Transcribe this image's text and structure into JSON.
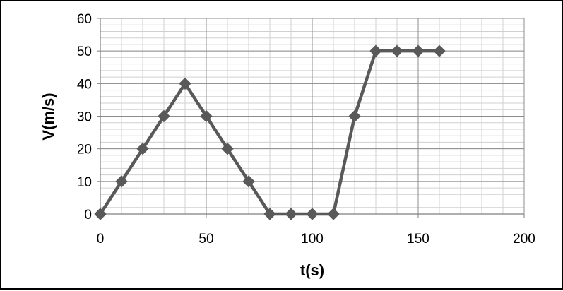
{
  "chart_data": {
    "type": "line",
    "title": "",
    "xlabel": "t(s)",
    "ylabel": "V(m/s)",
    "xlim": [
      0,
      200
    ],
    "ylim": [
      0,
      60
    ],
    "x_ticks": [
      0,
      50,
      100,
      150,
      200
    ],
    "y_ticks": [
      0,
      10,
      20,
      30,
      40,
      50,
      60
    ],
    "x_minor_step": 10,
    "y_minor_step": 2,
    "grid": true,
    "legend": "none",
    "colors": {
      "line": "#595959",
      "marker": "#595959",
      "major_grid": "#8c8c8c",
      "minor_grid": "#d0d0d0"
    },
    "marker": "diamond",
    "series": [
      {
        "x": [
          0,
          10,
          20,
          30,
          40,
          50,
          60,
          70,
          80,
          90,
          100,
          110,
          120,
          130,
          140,
          150,
          160
        ],
        "y": [
          0,
          10,
          20,
          30,
          40,
          30,
          20,
          10,
          0,
          0,
          0,
          0,
          30,
          50,
          50,
          50,
          50
        ]
      }
    ]
  }
}
